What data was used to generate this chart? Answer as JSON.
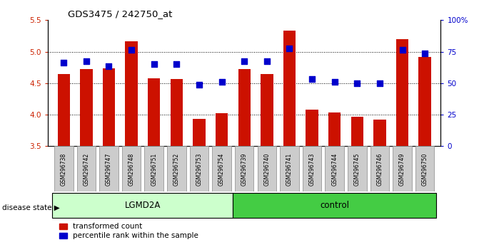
{
  "title": "GDS3475 / 242750_at",
  "samples": [
    "GSM296738",
    "GSM296742",
    "GSM296747",
    "GSM296748",
    "GSM296751",
    "GSM296752",
    "GSM296753",
    "GSM296754",
    "GSM296739",
    "GSM296740",
    "GSM296741",
    "GSM296743",
    "GSM296744",
    "GSM296745",
    "GSM296746",
    "GSM296749",
    "GSM296750"
  ],
  "red_values": [
    4.65,
    4.72,
    4.73,
    5.17,
    4.58,
    4.57,
    3.93,
    4.02,
    4.72,
    4.65,
    5.33,
    4.08,
    4.03,
    3.97,
    3.92,
    5.2,
    4.92
  ],
  "blue_values": [
    4.83,
    4.85,
    4.77,
    5.03,
    4.8,
    4.8,
    4.48,
    4.52,
    4.85,
    4.85,
    5.05,
    4.57,
    4.52,
    4.5,
    4.5,
    5.03,
    4.97
  ],
  "ylim_left": [
    3.5,
    5.5
  ],
  "ylim_right": [
    0,
    100
  ],
  "yticks_left": [
    3.5,
    4.0,
    4.5,
    5.0,
    5.5
  ],
  "yticks_right": [
    0,
    25,
    50,
    75,
    100
  ],
  "group1_label": "LGMD2A",
  "group1_count": 8,
  "group2_label": "control",
  "group2_count": 9,
  "disease_state_label": "disease state",
  "legend_red": "transformed count",
  "legend_blue": "percentile rank within the sample",
  "bar_color": "#cc1100",
  "dot_color": "#0000cc",
  "group1_color": "#ccffcc",
  "group2_color": "#44cc44",
  "tick_bg_color": "#cccccc",
  "bar_width": 0.55,
  "fig_width": 6.71,
  "fig_height": 3.54
}
